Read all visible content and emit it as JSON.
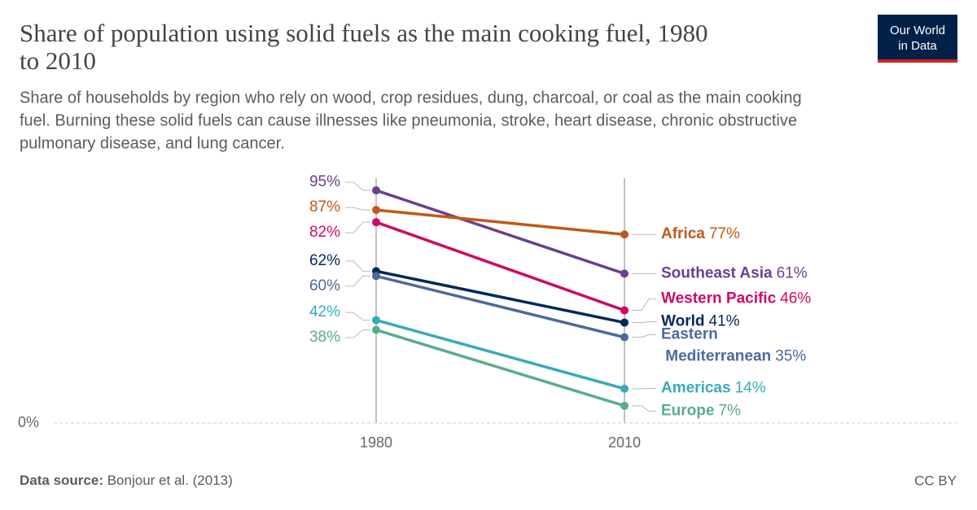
{
  "header": {
    "title_lines": [
      "Share of population using solid fuels as the main cooking fuel, 1980",
      "to 2010"
    ],
    "subtitle_lines": [
      "Share of households by region who rely on wood, crop residues, dung, charcoal, or coal as the main cooking",
      "fuel. Burning these solid fuels can cause illnesses like pneumonia, stroke, heart disease, chronic obstructive",
      "pulmonary disease, and lung cancer."
    ],
    "logo_lines": [
      "Our World",
      "in Data"
    ]
  },
  "chart_data": {
    "type": "slope",
    "categories": [
      "1980",
      "2010"
    ],
    "ylim": [
      0,
      100
    ],
    "yticks": [
      {
        "value": 0,
        "label": "0%"
      }
    ],
    "series": [
      {
        "name": "Southeast Asia",
        "color": "#6d3e91",
        "values": [
          95,
          61
        ],
        "value_labels": [
          "95%",
          "61%"
        ]
      },
      {
        "name": "Africa",
        "color": "#c05917",
        "values": [
          87,
          77
        ],
        "value_labels": [
          "87%",
          "77%"
        ]
      },
      {
        "name": "Western Pacific",
        "color": "#cf0a66",
        "values": [
          82,
          46
        ],
        "value_labels": [
          "82%",
          "46%"
        ]
      },
      {
        "name": "World",
        "color": "#00295b",
        "values": [
          62,
          41
        ],
        "value_labels": [
          "62%",
          "41%"
        ]
      },
      {
        "name": "Eastern Mediterranean",
        "color": "#4c6a9c",
        "values": [
          60,
          35
        ],
        "value_labels": [
          "60%",
          "35%"
        ]
      },
      {
        "name": "Americas",
        "color": "#38aaba",
        "values": [
          42,
          14
        ],
        "value_labels": [
          "42%",
          "14%"
        ]
      },
      {
        "name": "Europe",
        "color": "#58ac8c",
        "values": [
          38,
          7
        ],
        "value_labels": [
          "38%",
          "7%"
        ]
      }
    ]
  },
  "footer": {
    "source_label": "Data source:",
    "source": "Bonjour et al. (2013)",
    "license": "CC BY"
  }
}
